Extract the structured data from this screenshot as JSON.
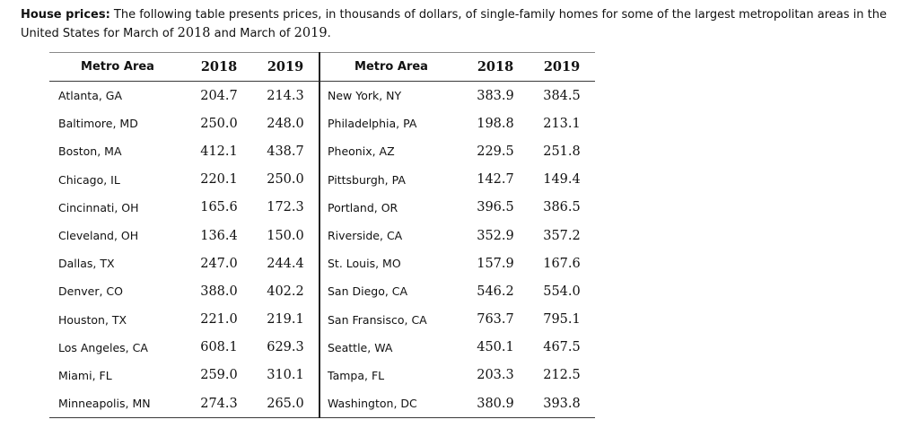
{
  "intro": {
    "lead": "House prices:",
    "text_before_2018": " The following table presents prices, in thousands of dollars, of single-family homes for some of the largest metropolitan areas in the United States for March of ",
    "year_a": "2018",
    "text_between": " and March of ",
    "year_b": "2019",
    "text_end": "."
  },
  "table": {
    "headers": {
      "area_left": "Metro Area",
      "y2018_left": "2018",
      "y2019_left": "2019",
      "area_right": "Metro Area",
      "y2018_right": "2018",
      "y2019_right": "2019"
    },
    "rows": [
      {
        "left": {
          "area": "Atlanta, GA",
          "y2018": "204.7",
          "y2019": "214.3"
        },
        "right": {
          "area": "New York, NY",
          "y2018": "383.9",
          "y2019": "384.5"
        }
      },
      {
        "left": {
          "area": "Baltimore, MD",
          "y2018": "250.0",
          "y2019": "248.0"
        },
        "right": {
          "area": "Philadelphia, PA",
          "y2018": "198.8",
          "y2019": "213.1"
        }
      },
      {
        "left": {
          "area": "Boston, MA",
          "y2018": "412.1",
          "y2019": "438.7"
        },
        "right": {
          "area": "Pheonix, AZ",
          "y2018": "229.5",
          "y2019": "251.8"
        }
      },
      {
        "left": {
          "area": "Chicago, IL",
          "y2018": "220.1",
          "y2019": "250.0"
        },
        "right": {
          "area": "Pittsburgh, PA",
          "y2018": "142.7",
          "y2019": "149.4"
        }
      },
      {
        "left": {
          "area": "Cincinnati, OH",
          "y2018": "165.6",
          "y2019": "172.3"
        },
        "right": {
          "area": "Portland, OR",
          "y2018": "396.5",
          "y2019": "386.5"
        }
      },
      {
        "left": {
          "area": "Cleveland, OH",
          "y2018": "136.4",
          "y2019": "150.0"
        },
        "right": {
          "area": "Riverside, CA",
          "y2018": "352.9",
          "y2019": "357.2"
        }
      },
      {
        "left": {
          "area": "Dallas, TX",
          "y2018": "247.0",
          "y2019": "244.4"
        },
        "right": {
          "area": "St. Louis, MO",
          "y2018": "157.9",
          "y2019": "167.6"
        }
      },
      {
        "left": {
          "area": "Denver, CO",
          "y2018": "388.0",
          "y2019": "402.2"
        },
        "right": {
          "area": "San Diego, CA",
          "y2018": "546.2",
          "y2019": "554.0"
        }
      },
      {
        "left": {
          "area": "Houston, TX",
          "y2018": "221.0",
          "y2019": "219.1"
        },
        "right": {
          "area": "San Fransisco, CA",
          "y2018": "763.7",
          "y2019": "795.1"
        }
      },
      {
        "left": {
          "area": "Los Angeles, CA",
          "y2018": "608.1",
          "y2019": "629.3"
        },
        "right": {
          "area": "Seattle, WA",
          "y2018": "450.1",
          "y2019": "467.5"
        }
      },
      {
        "left": {
          "area": "Miami, FL",
          "y2018": "259.0",
          "y2019": "310.1"
        },
        "right": {
          "area": "Tampa, FL",
          "y2018": "203.3",
          "y2019": "212.5"
        }
      },
      {
        "left": {
          "area": "Minneapolis, MN",
          "y2018": "274.3",
          "y2019": "265.0"
        },
        "right": {
          "area": "Washington, DC",
          "y2018": "380.9",
          "y2019": "393.8"
        }
      }
    ]
  }
}
